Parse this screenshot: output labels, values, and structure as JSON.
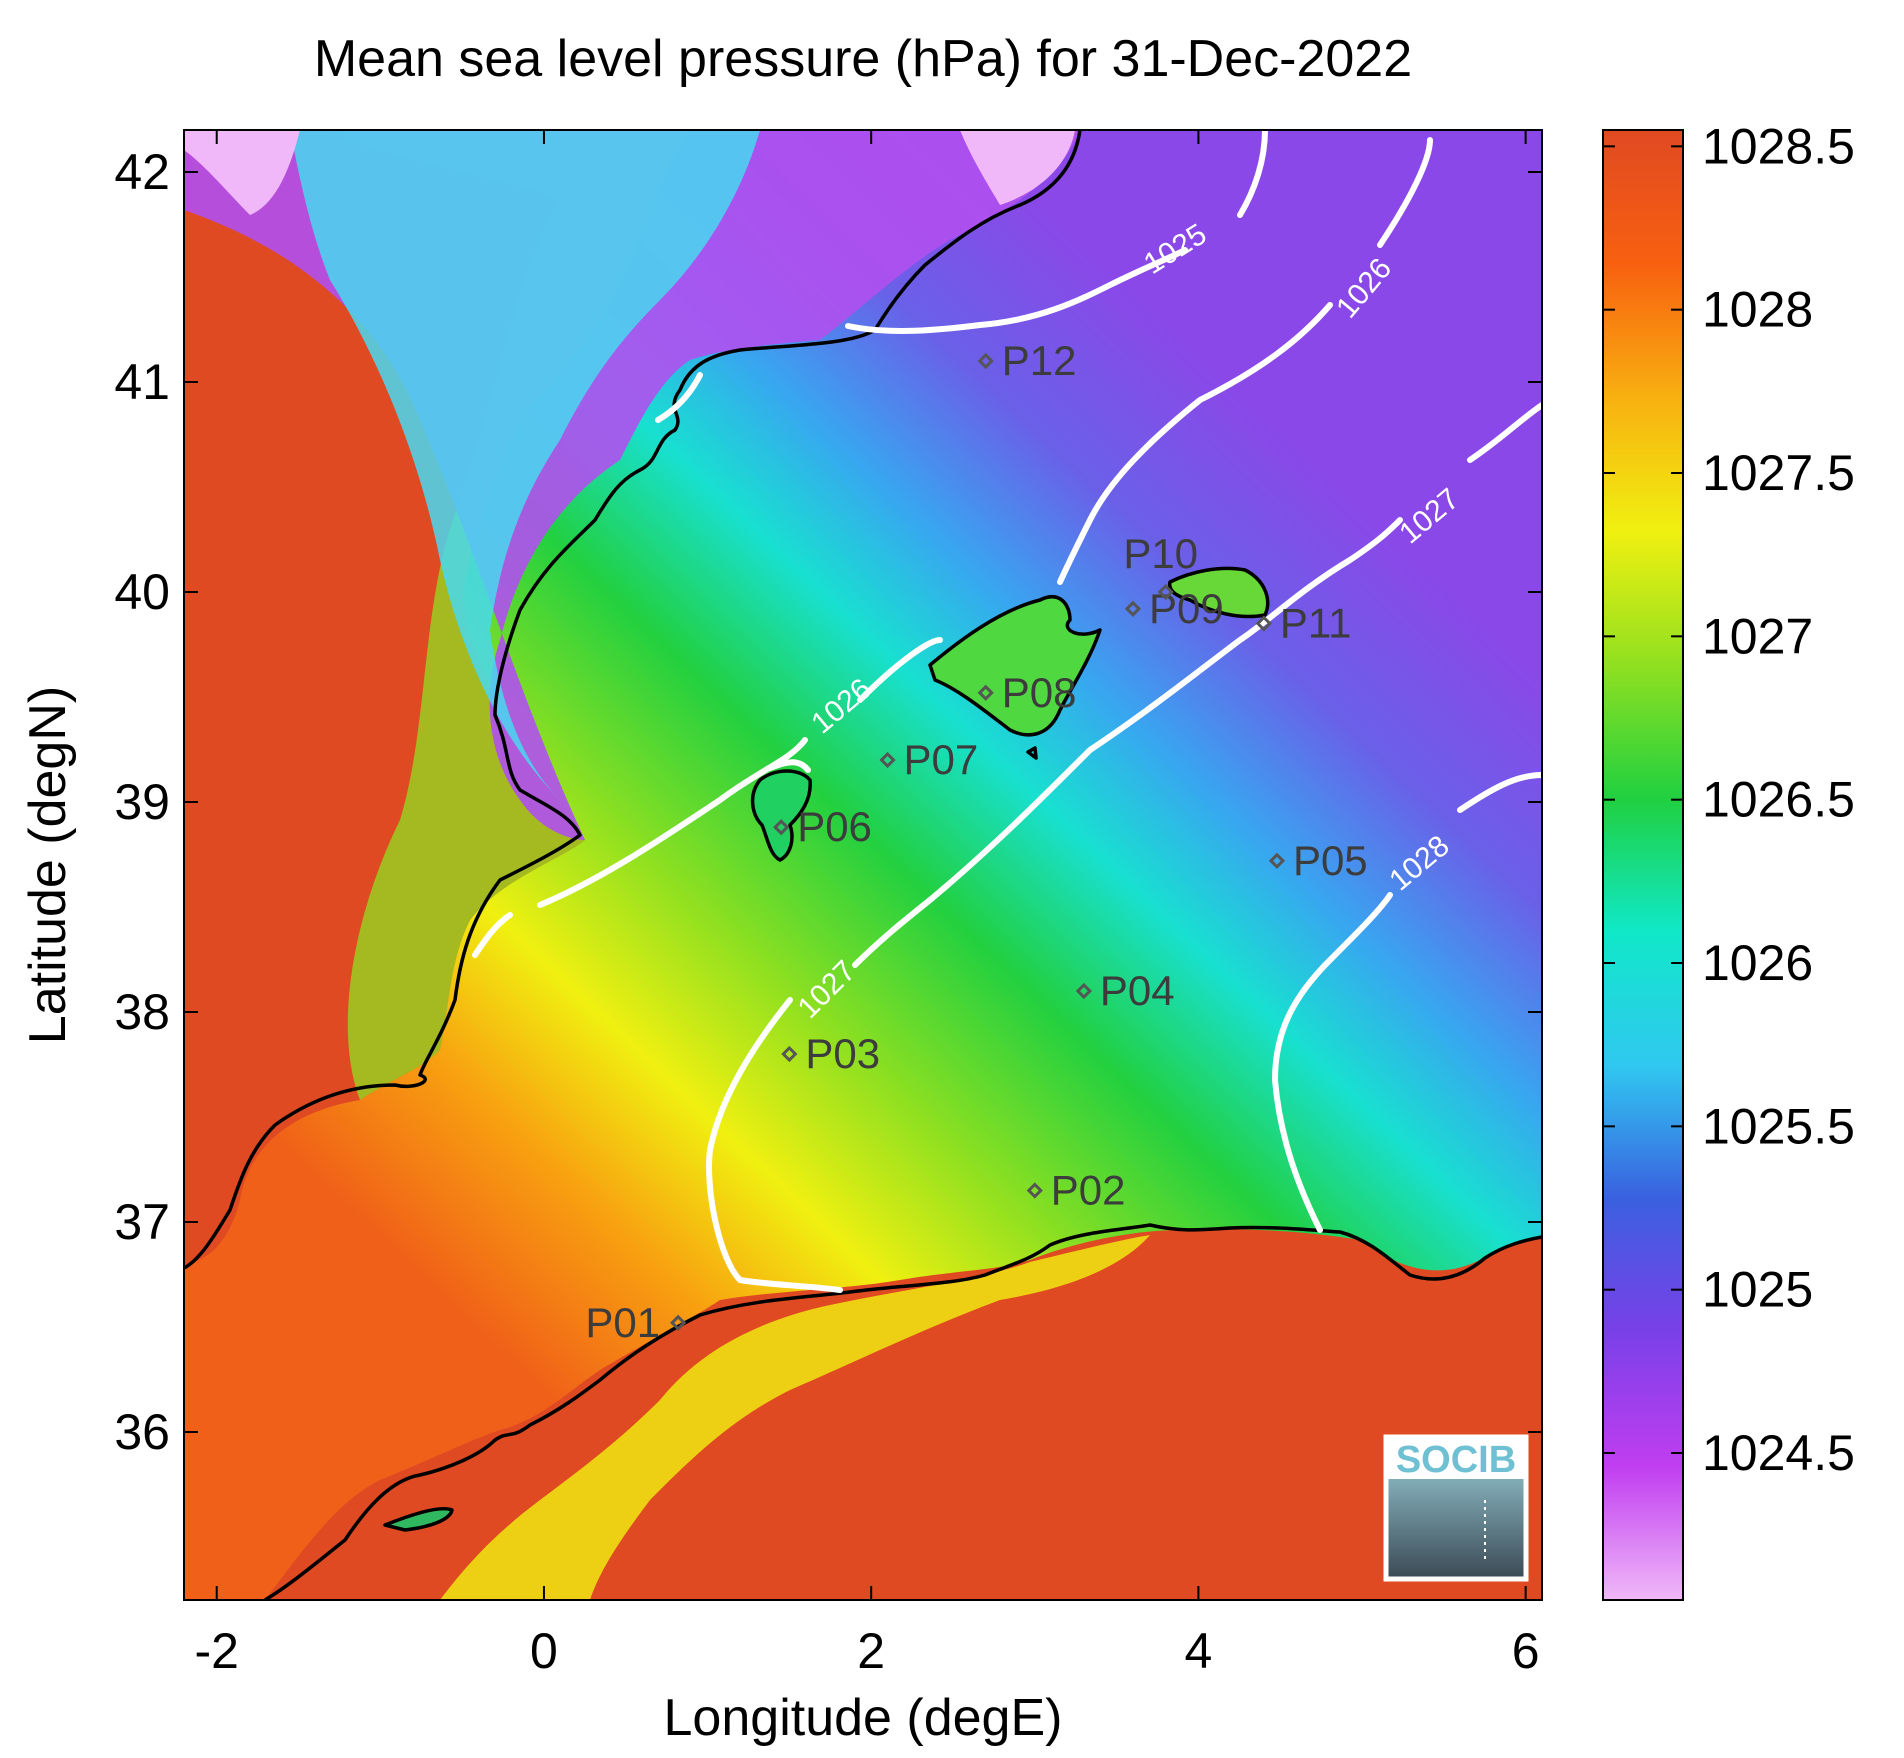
{
  "title": "Mean sea level pressure (hPa) for 31-Dec-2022",
  "x_axis": {
    "label": "Longitude (degE)",
    "range": [
      -2.2,
      6.1
    ],
    "ticks": [
      -2,
      0,
      2,
      4,
      6
    ],
    "tick_labels": [
      "-2",
      "0",
      "2",
      "4",
      "6"
    ]
  },
  "y_axis": {
    "label": "Latitude (degN)",
    "range": [
      35.2,
      42.2
    ],
    "ticks": [
      36,
      37,
      38,
      39,
      40,
      41,
      42
    ],
    "tick_labels": [
      "36",
      "37",
      "38",
      "39",
      "40",
      "41",
      "42"
    ]
  },
  "colorbar": {
    "range": [
      1024.05,
      1028.55
    ],
    "ticks": [
      1024.5,
      1025,
      1025.5,
      1026,
      1026.5,
      1027,
      1027.5,
      1028,
      1028.5
    ],
    "tick_labels": [
      "1024.5",
      "1025",
      "1025.5",
      "1026",
      "1026.5",
      "1027",
      "1027.5",
      "1028",
      "1028.5"
    ],
    "colors": [
      "#f0b8f8",
      "#c03ef0",
      "#7a40e8",
      "#3a60e0",
      "#30c8f0",
      "#10e8c8",
      "#20d040",
      "#90e020",
      "#f0f010",
      "#f8b010",
      "#f86010",
      "#e04a22"
    ]
  },
  "contours": [
    {
      "value": 1025,
      "label": "1025"
    },
    {
      "value": 1026,
      "label": "1026"
    },
    {
      "value": 1027,
      "label": "1027"
    },
    {
      "value": 1028,
      "label": "1028"
    }
  ],
  "stations": [
    {
      "id": "P01",
      "lon": 0.82,
      "lat": 36.52
    },
    {
      "id": "P02",
      "lon": 3.0,
      "lat": 37.15
    },
    {
      "id": "P03",
      "lon": 1.5,
      "lat": 37.8
    },
    {
      "id": "P04",
      "lon": 3.3,
      "lat": 38.1
    },
    {
      "id": "P05",
      "lon": 4.48,
      "lat": 38.72
    },
    {
      "id": "P06",
      "lon": 1.45,
      "lat": 38.88
    },
    {
      "id": "P07",
      "lon": 2.1,
      "lat": 39.2
    },
    {
      "id": "P08",
      "lon": 2.7,
      "lat": 39.52
    },
    {
      "id": "P09",
      "lon": 3.6,
      "lat": 39.92
    },
    {
      "id": "P10",
      "lon": 3.8,
      "lat": 40.0
    },
    {
      "id": "P11",
      "lon": 4.4,
      "lat": 39.85
    },
    {
      "id": "P12",
      "lon": 2.7,
      "lat": 41.1
    }
  ],
  "logo": {
    "text": "SOCIB"
  },
  "legend_placement": "right colorbar"
}
